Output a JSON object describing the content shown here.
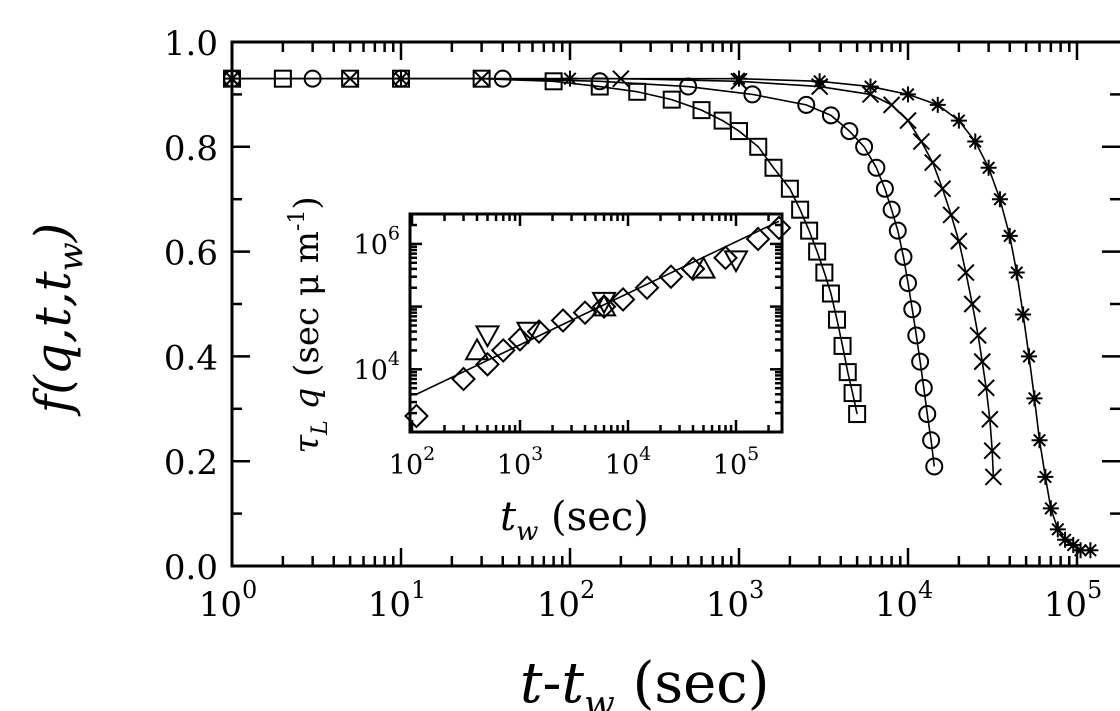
{
  "chart_data": [
    {
      "type": "scatter",
      "xscale": "log",
      "xlim": [
        1,
        100000
      ],
      "ylim": [
        0.0,
        1.0
      ],
      "xlabel": "t-t_w (sec)",
      "ylabel": "f(q,t,t_w)",
      "x_ticks": [
        "10^0",
        "10^1",
        "10^2",
        "10^3",
        "10^4",
        "10^5"
      ],
      "y_ticks": [
        "0.0",
        "0.2",
        "0.4",
        "0.6",
        "0.8",
        "1.0"
      ],
      "series": [
        {
          "marker": "square",
          "points": [
            [
              1,
              0.93
            ],
            [
              2,
              0.93
            ],
            [
              5,
              0.93
            ],
            [
              10,
              0.93
            ],
            [
              30,
              0.93
            ],
            [
              80,
              0.925
            ],
            [
              150,
              0.915
            ],
            [
              250,
              0.905
            ],
            [
              400,
              0.89
            ],
            [
              600,
              0.87
            ],
            [
              800,
              0.85
            ],
            [
              1000,
              0.83
            ],
            [
              1300,
              0.8
            ],
            [
              1600,
              0.76
            ],
            [
              2000,
              0.72
            ],
            [
              2300,
              0.68
            ],
            [
              2600,
              0.64
            ],
            [
              2900,
              0.6
            ],
            [
              3200,
              0.56
            ],
            [
              3500,
              0.52
            ],
            [
              3800,
              0.47
            ],
            [
              4100,
              0.42
            ],
            [
              4400,
              0.37
            ],
            [
              4700,
              0.33
            ],
            [
              5000,
              0.29
            ]
          ]
        },
        {
          "marker": "circle",
          "points": [
            [
              1,
              0.93
            ],
            [
              3,
              0.93
            ],
            [
              10,
              0.93
            ],
            [
              40,
              0.93
            ],
            [
              150,
              0.925
            ],
            [
              500,
              0.915
            ],
            [
              1200,
              0.9
            ],
            [
              2500,
              0.88
            ],
            [
              3500,
              0.86
            ],
            [
              4500,
              0.83
            ],
            [
              5500,
              0.8
            ],
            [
              6500,
              0.76
            ],
            [
              7300,
              0.72
            ],
            [
              8000,
              0.68
            ],
            [
              8700,
              0.64
            ],
            [
              9400,
              0.59
            ],
            [
              10000,
              0.54
            ],
            [
              10600,
              0.49
            ],
            [
              11200,
              0.44
            ],
            [
              11800,
              0.39
            ],
            [
              12400,
              0.34
            ],
            [
              13000,
              0.29
            ],
            [
              13700,
              0.24
            ],
            [
              14300,
              0.19
            ]
          ]
        },
        {
          "marker": "x",
          "points": [
            [
              1,
              0.93
            ],
            [
              5,
              0.93
            ],
            [
              30,
              0.93
            ],
            [
              200,
              0.93
            ],
            [
              1000,
              0.925
            ],
            [
              3000,
              0.915
            ],
            [
              6000,
              0.9
            ],
            [
              8000,
              0.88
            ],
            [
              10000,
              0.85
            ],
            [
              12000,
              0.81
            ],
            [
              14000,
              0.77
            ],
            [
              16000,
              0.72
            ],
            [
              18000,
              0.67
            ],
            [
              20000,
              0.62
            ],
            [
              22000,
              0.56
            ],
            [
              24000,
              0.5
            ],
            [
              26000,
              0.44
            ],
            [
              27500,
              0.39
            ],
            [
              29000,
              0.34
            ],
            [
              30500,
              0.28
            ],
            [
              31500,
              0.22
            ],
            [
              32000,
              0.17
            ]
          ]
        },
        {
          "marker": "star",
          "points": [
            [
              1,
              0.93
            ],
            [
              10,
              0.93
            ],
            [
              100,
              0.93
            ],
            [
              1000,
              0.93
            ],
            [
              3000,
              0.925
            ],
            [
              6000,
              0.915
            ],
            [
              10000,
              0.9
            ],
            [
              15000,
              0.88
            ],
            [
              20000,
              0.85
            ],
            [
              25000,
              0.81
            ],
            [
              30000,
              0.76
            ],
            [
              35000,
              0.7
            ],
            [
              40000,
              0.63
            ],
            [
              44000,
              0.56
            ],
            [
              48000,
              0.48
            ],
            [
              52000,
              0.4
            ],
            [
              56000,
              0.32
            ],
            [
              60000,
              0.24
            ],
            [
              65000,
              0.17
            ],
            [
              70000,
              0.11
            ],
            [
              77000,
              0.07
            ],
            [
              85000,
              0.05
            ],
            [
              95000,
              0.04
            ],
            [
              105000,
              0.03
            ],
            [
              120000,
              0.03
            ]
          ]
        }
      ]
    },
    {
      "type": "scatter",
      "xscale": "log",
      "yscale": "log",
      "xlim": [
        100,
        300000
      ],
      "ylim": [
        1000,
        3000000
      ],
      "xlabel": "t_w (sec)",
      "ylabel": "τ_L q (sec μm^-1)",
      "x_ticks": [
        "10^2",
        "10^3",
        "10^4",
        "10^5"
      ],
      "y_ticks": [
        "10^4",
        "10^6"
      ],
      "series": [
        {
          "marker": "diamond",
          "points": [
            [
              110,
              1800
            ],
            [
              300,
              7000
            ],
            [
              500,
              12000
            ],
            [
              700,
              20000
            ],
            [
              1000,
              30000
            ],
            [
              1500,
              40000
            ],
            [
              2500,
              60000
            ],
            [
              4000,
              80000
            ],
            [
              6000,
              100000
            ],
            [
              9000,
              130000
            ],
            [
              15000,
              200000
            ],
            [
              25000,
              300000
            ],
            [
              40000,
              400000
            ],
            [
              80000,
              600000
            ],
            [
              160000,
              1200000
            ],
            [
              250000,
              1800000
            ]
          ]
        },
        {
          "marker": "triangle-down",
          "points": [
            [
              500,
              35000
            ],
            [
              1200,
              40000
            ],
            [
              6000,
              120000
            ],
            [
              100000,
              550000
            ]
          ]
        },
        {
          "marker": "triangle-up",
          "points": [
            [
              400,
              20000
            ],
            [
              6000,
              100000
            ],
            [
              50000,
              400000
            ]
          ]
        }
      ],
      "fit_line": {
        "x": [
          110,
          250000
        ],
        "y": [
          4000,
          2300000
        ]
      }
    }
  ]
}
